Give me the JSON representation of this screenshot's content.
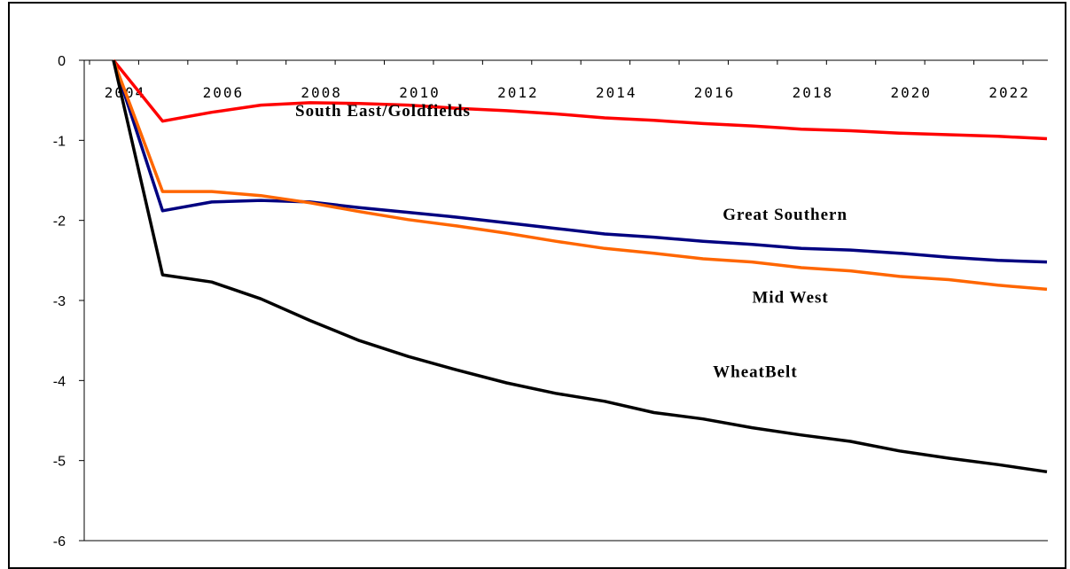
{
  "chart_data": {
    "type": "line",
    "x": [
      2004,
      2005,
      2006,
      2007,
      2008,
      2009,
      2010,
      2011,
      2012,
      2013,
      2014,
      2015,
      2016,
      2017,
      2018,
      2019,
      2020,
      2021,
      2022,
      2023
    ],
    "xticks": [
      2004,
      2006,
      2008,
      2010,
      2012,
      2014,
      2016,
      2018,
      2020,
      2022
    ],
    "xtick_labels": [
      "2004",
      "2006",
      "2008",
      "2010",
      "2012",
      "2014",
      "2016",
      "2018",
      "2020",
      "2022"
    ],
    "yticks": [
      0,
      -1,
      -2,
      -3,
      -4,
      -5,
      -6
    ],
    "ytick_labels": [
      "0",
      "-1",
      "-2",
      "-3",
      "-4",
      "-5",
      "-6"
    ],
    "ylim": [
      -6,
      0
    ],
    "xlim": [
      2003,
      2023
    ],
    "grid": false,
    "legend": "none",
    "series": [
      {
        "name": "South East/Goldfields",
        "label_text": "South East/Goldfields",
        "label_anchor": [
          2007.7,
          -0.7
        ],
        "color": "#ff0000",
        "values": [
          0,
          -0.76,
          -0.65,
          -0.56,
          -0.53,
          -0.54,
          -0.56,
          -0.6,
          -0.63,
          -0.67,
          -0.72,
          -0.75,
          -0.79,
          -0.82,
          -0.86,
          -0.88,
          -0.91,
          -0.93,
          -0.95,
          -0.98
        ]
      },
      {
        "name": "Great Southern",
        "label_text": "Great Southern",
        "label_anchor": [
          2016.4,
          -1.99
        ],
        "color": "#000080",
        "values": [
          0,
          -1.88,
          -1.77,
          -1.75,
          -1.77,
          -1.84,
          -1.9,
          -1.96,
          -2.03,
          -2.1,
          -2.17,
          -2.21,
          -2.26,
          -2.3,
          -2.35,
          -2.37,
          -2.41,
          -2.46,
          -2.5,
          -2.52
        ]
      },
      {
        "name": "Mid West",
        "label_text": "Mid West",
        "label_anchor": [
          2017.0,
          -3.03
        ],
        "color": "#ff6600",
        "values": [
          0,
          -1.64,
          -1.64,
          -1.69,
          -1.78,
          -1.89,
          -1.99,
          -2.07,
          -2.16,
          -2.26,
          -2.35,
          -2.41,
          -2.48,
          -2.52,
          -2.59,
          -2.63,
          -2.7,
          -2.74,
          -2.81,
          -2.86
        ]
      },
      {
        "name": "Wheat Belt",
        "label_text": "WheatBelt",
        "label_anchor": [
          2016.2,
          -3.96
        ],
        "color": "#000000",
        "values": [
          0,
          -2.68,
          -2.77,
          -2.98,
          -3.25,
          -3.5,
          -3.7,
          -3.87,
          -4.03,
          -4.16,
          -4.26,
          -4.4,
          -4.48,
          -4.59,
          -4.68,
          -4.76,
          -4.88,
          -4.97,
          -5.05,
          -5.14
        ]
      }
    ]
  }
}
